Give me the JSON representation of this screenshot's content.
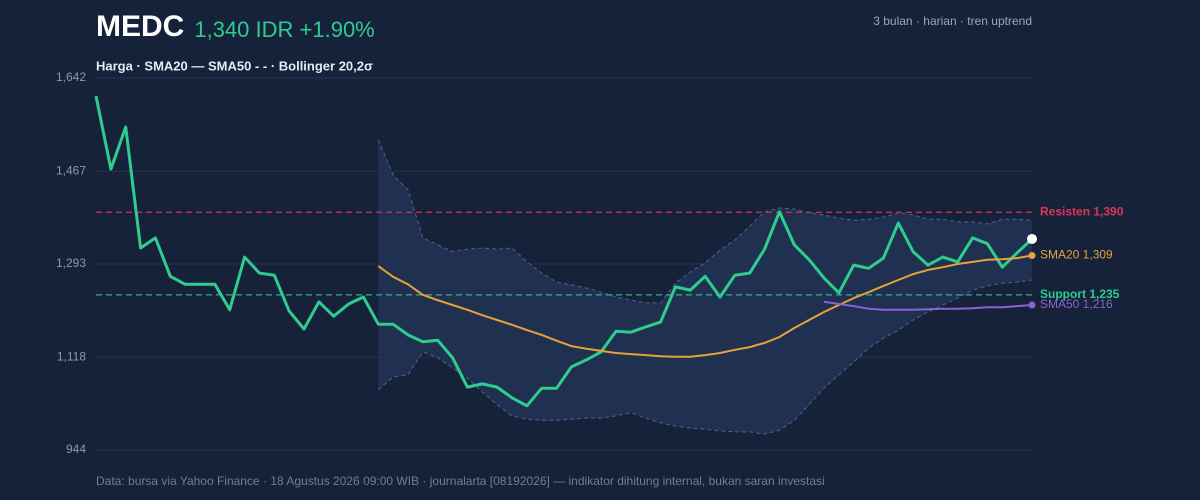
{
  "chart_data": {
    "type": "line",
    "title": "MEDC",
    "subtitle": "1,340 IDR +1.90%",
    "period_note": "3 bulan · harian · tren uptrend",
    "legend": "Harga · SMA20 — SMA50 - - · Bollinger 20,2σ",
    "source": "Data: bursa via Yahoo Finance · 18 Agustus 2026 09:00 WIB · journalarta [08192026] — indikator dihitung internal, bukan saran investasi",
    "ylim": [
      944,
      1642
    ],
    "yticks": [
      {
        "value": 1642,
        "label": "1,642"
      },
      {
        "value": 1467,
        "label": "1,467"
      },
      {
        "value": 1293,
        "label": "1,293"
      },
      {
        "value": 1118,
        "label": "1,118"
      },
      {
        "value": 944,
        "label": "944"
      }
    ],
    "grid": true,
    "series": [
      {
        "name": "Harga",
        "color": "#2fcc8e",
        "values": [
          1608,
          1471,
          1550,
          1323,
          1342,
          1270,
          1255,
          1255,
          1255,
          1207,
          1306,
          1276,
          1272,
          1205,
          1171,
          1222,
          1195,
          1218,
          1231,
          1180,
          1180,
          1160,
          1147,
          1150,
          1117,
          1062,
          1068,
          1062,
          1042,
          1027,
          1060,
          1060,
          1100,
          1113,
          1128,
          1167,
          1165,
          1175,
          1184,
          1250,
          1244,
          1270,
          1231,
          1272,
          1276,
          1321,
          1391,
          1329,
          1301,
          1267,
          1239,
          1291,
          1285,
          1304,
          1370,
          1316,
          1291,
          1306,
          1297,
          1342,
          1331,
          1287,
          1314,
          1340
        ]
      },
      {
        "name": "SMA20",
        "color": "#e8a23a",
        "end_label": "SMA20 1,309",
        "values": [
          null,
          null,
          null,
          null,
          null,
          null,
          null,
          null,
          null,
          null,
          null,
          null,
          null,
          null,
          null,
          null,
          null,
          null,
          null,
          1289,
          1269,
          1255,
          1235,
          1225,
          1216,
          1207,
          1197,
          1188,
          1179,
          1169,
          1160,
          1149,
          1139,
          1134,
          1130,
          1126,
          1124,
          1122,
          1120,
          1119,
          1119,
          1122,
          1126,
          1132,
          1137,
          1145,
          1156,
          1173,
          1188,
          1203,
          1216,
          1229,
          1240,
          1252,
          1263,
          1274,
          1282,
          1287,
          1293,
          1297,
          1301,
          1302,
          1304,
          1309
        ]
      },
      {
        "name": "SMA50",
        "color": "#8a63d2",
        "end_label": "SMA50 1,216",
        "values": [
          null,
          null,
          null,
          null,
          null,
          null,
          null,
          null,
          null,
          null,
          null,
          null,
          null,
          null,
          null,
          null,
          null,
          null,
          null,
          null,
          null,
          null,
          null,
          null,
          null,
          null,
          null,
          null,
          null,
          null,
          null,
          null,
          null,
          null,
          null,
          null,
          null,
          null,
          null,
          null,
          null,
          null,
          null,
          null,
          null,
          null,
          null,
          null,
          null,
          1222,
          1218,
          1214,
          1209,
          1207,
          1207,
          1207,
          1208,
          1209,
          1209,
          1210,
          1212,
          1212,
          1214,
          1216
        ]
      }
    ],
    "bollinger": {
      "color": "#4f6289",
      "upper": [
        null,
        null,
        null,
        null,
        null,
        null,
        null,
        null,
        null,
        null,
        null,
        null,
        null,
        null,
        null,
        null,
        null,
        null,
        null,
        1526,
        1460,
        1432,
        1342,
        1329,
        1316,
        1321,
        1323,
        1321,
        1323,
        1297,
        1276,
        1259,
        1254,
        1248,
        1240,
        1231,
        1225,
        1220,
        1220,
        1257,
        1278,
        1295,
        1319,
        1338,
        1364,
        1391,
        1398,
        1396,
        1389,
        1385,
        1379,
        1375,
        1377,
        1381,
        1389,
        1385,
        1377,
        1377,
        1372,
        1372,
        1368,
        1377,
        1377,
        1375
      ],
      "lower": [
        null,
        null,
        null,
        null,
        null,
        null,
        null,
        null,
        null,
        null,
        null,
        null,
        null,
        null,
        null,
        null,
        null,
        null,
        null,
        1057,
        1081,
        1085,
        1128,
        1117,
        1098,
        1079,
        1053,
        1029,
        1008,
        1002,
        1000,
        1000,
        1002,
        1004,
        1004,
        1008,
        1014,
        1004,
        995,
        989,
        985,
        983,
        980,
        978,
        978,
        974,
        981,
        1000,
        1029,
        1060,
        1085,
        1109,
        1135,
        1154,
        1169,
        1188,
        1203,
        1216,
        1229,
        1244,
        1252,
        1257,
        1259,
        1263
      ]
    },
    "levels": [
      {
        "label": "Resisten 1,390",
        "value": 1390,
        "color": "#e0325a"
      },
      {
        "label": "Support 1,235",
        "value": 1235,
        "color": "#2fcc8e"
      }
    ]
  }
}
